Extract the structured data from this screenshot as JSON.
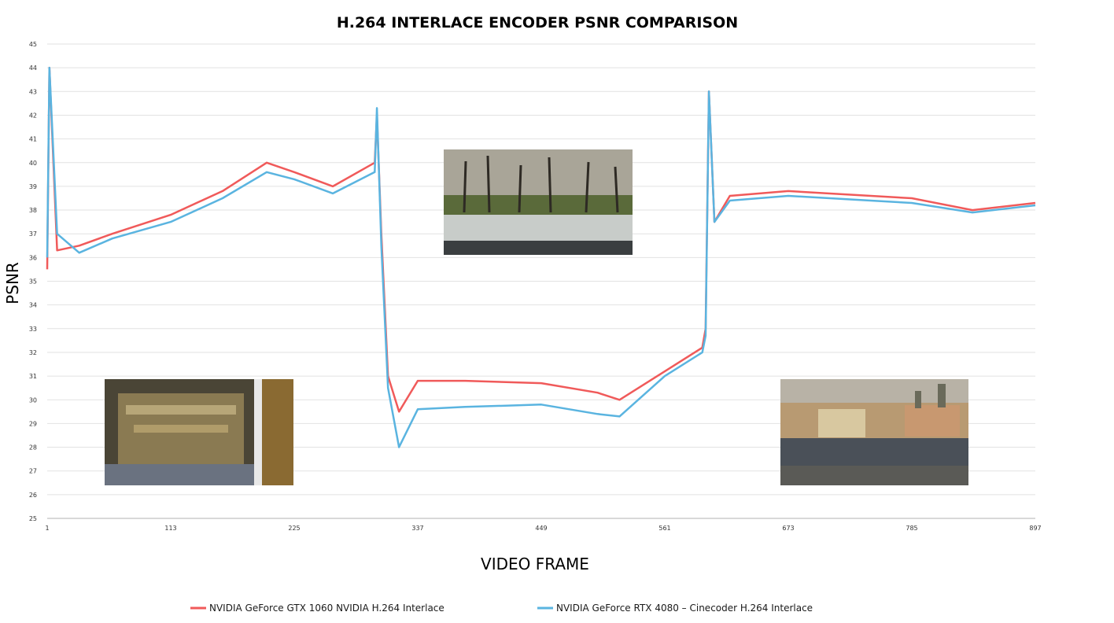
{
  "chart_data": {
    "type": "line",
    "title": "H.264 INTERLACE ENCODER PSNR COMPARISON",
    "xlabel": "VIDEO FRAME",
    "ylabel": "PSNR",
    "xlim": [
      1,
      897
    ],
    "ylim": [
      25,
      45
    ],
    "x_ticks": [
      "1",
      "113",
      "225",
      "337",
      "449",
      "561",
      "673",
      "785",
      "897"
    ],
    "y_ticks": [
      "25",
      "26",
      "27",
      "28",
      "29",
      "30",
      "31",
      "32",
      "33",
      "34",
      "35",
      "36",
      "37",
      "38",
      "39",
      "40",
      "41",
      "42",
      "43",
      "44",
      "45"
    ],
    "grid": "horizontal",
    "legend_position": "bottom",
    "series": [
      {
        "name": "NVIDIA GeForce GTX 1060 NVIDIA H.264 Interlace",
        "color": "#f05a5a",
        "x": [
          1,
          3,
          10,
          30,
          60,
          113,
          160,
          200,
          225,
          260,
          298,
          300,
          304,
          310,
          320,
          337,
          380,
          449,
          500,
          520,
          561,
          595,
          598,
          601,
          606,
          620,
          673,
          785,
          840,
          897
        ],
        "y": [
          35.5,
          44.0,
          36.3,
          36.5,
          37.0,
          37.8,
          38.8,
          40.0,
          39.6,
          39.0,
          40.0,
          42.0,
          37.0,
          31.0,
          29.5,
          30.8,
          30.8,
          30.7,
          30.3,
          30.0,
          31.2,
          32.2,
          33.0,
          43.0,
          37.5,
          38.6,
          38.8,
          38.5,
          38.0,
          38.3
        ]
      },
      {
        "name": "NVIDIA GeForce RTX 4080 – Cinecoder H.264 Interlace",
        "color": "#5ab4e0",
        "x": [
          1,
          3,
          10,
          30,
          60,
          113,
          160,
          200,
          225,
          260,
          298,
          300,
          304,
          310,
          320,
          337,
          380,
          449,
          500,
          520,
          561,
          595,
          598,
          601,
          606,
          620,
          673,
          785,
          840,
          897
        ],
        "y": [
          36.0,
          44.0,
          37.0,
          36.2,
          36.8,
          37.5,
          38.5,
          39.6,
          39.3,
          38.7,
          39.6,
          42.3,
          36.5,
          30.5,
          28.0,
          29.6,
          29.7,
          29.8,
          29.4,
          29.3,
          31.0,
          32.0,
          32.7,
          43.0,
          37.5,
          38.4,
          38.6,
          38.3,
          37.9,
          38.2
        ]
      }
    ]
  }
}
